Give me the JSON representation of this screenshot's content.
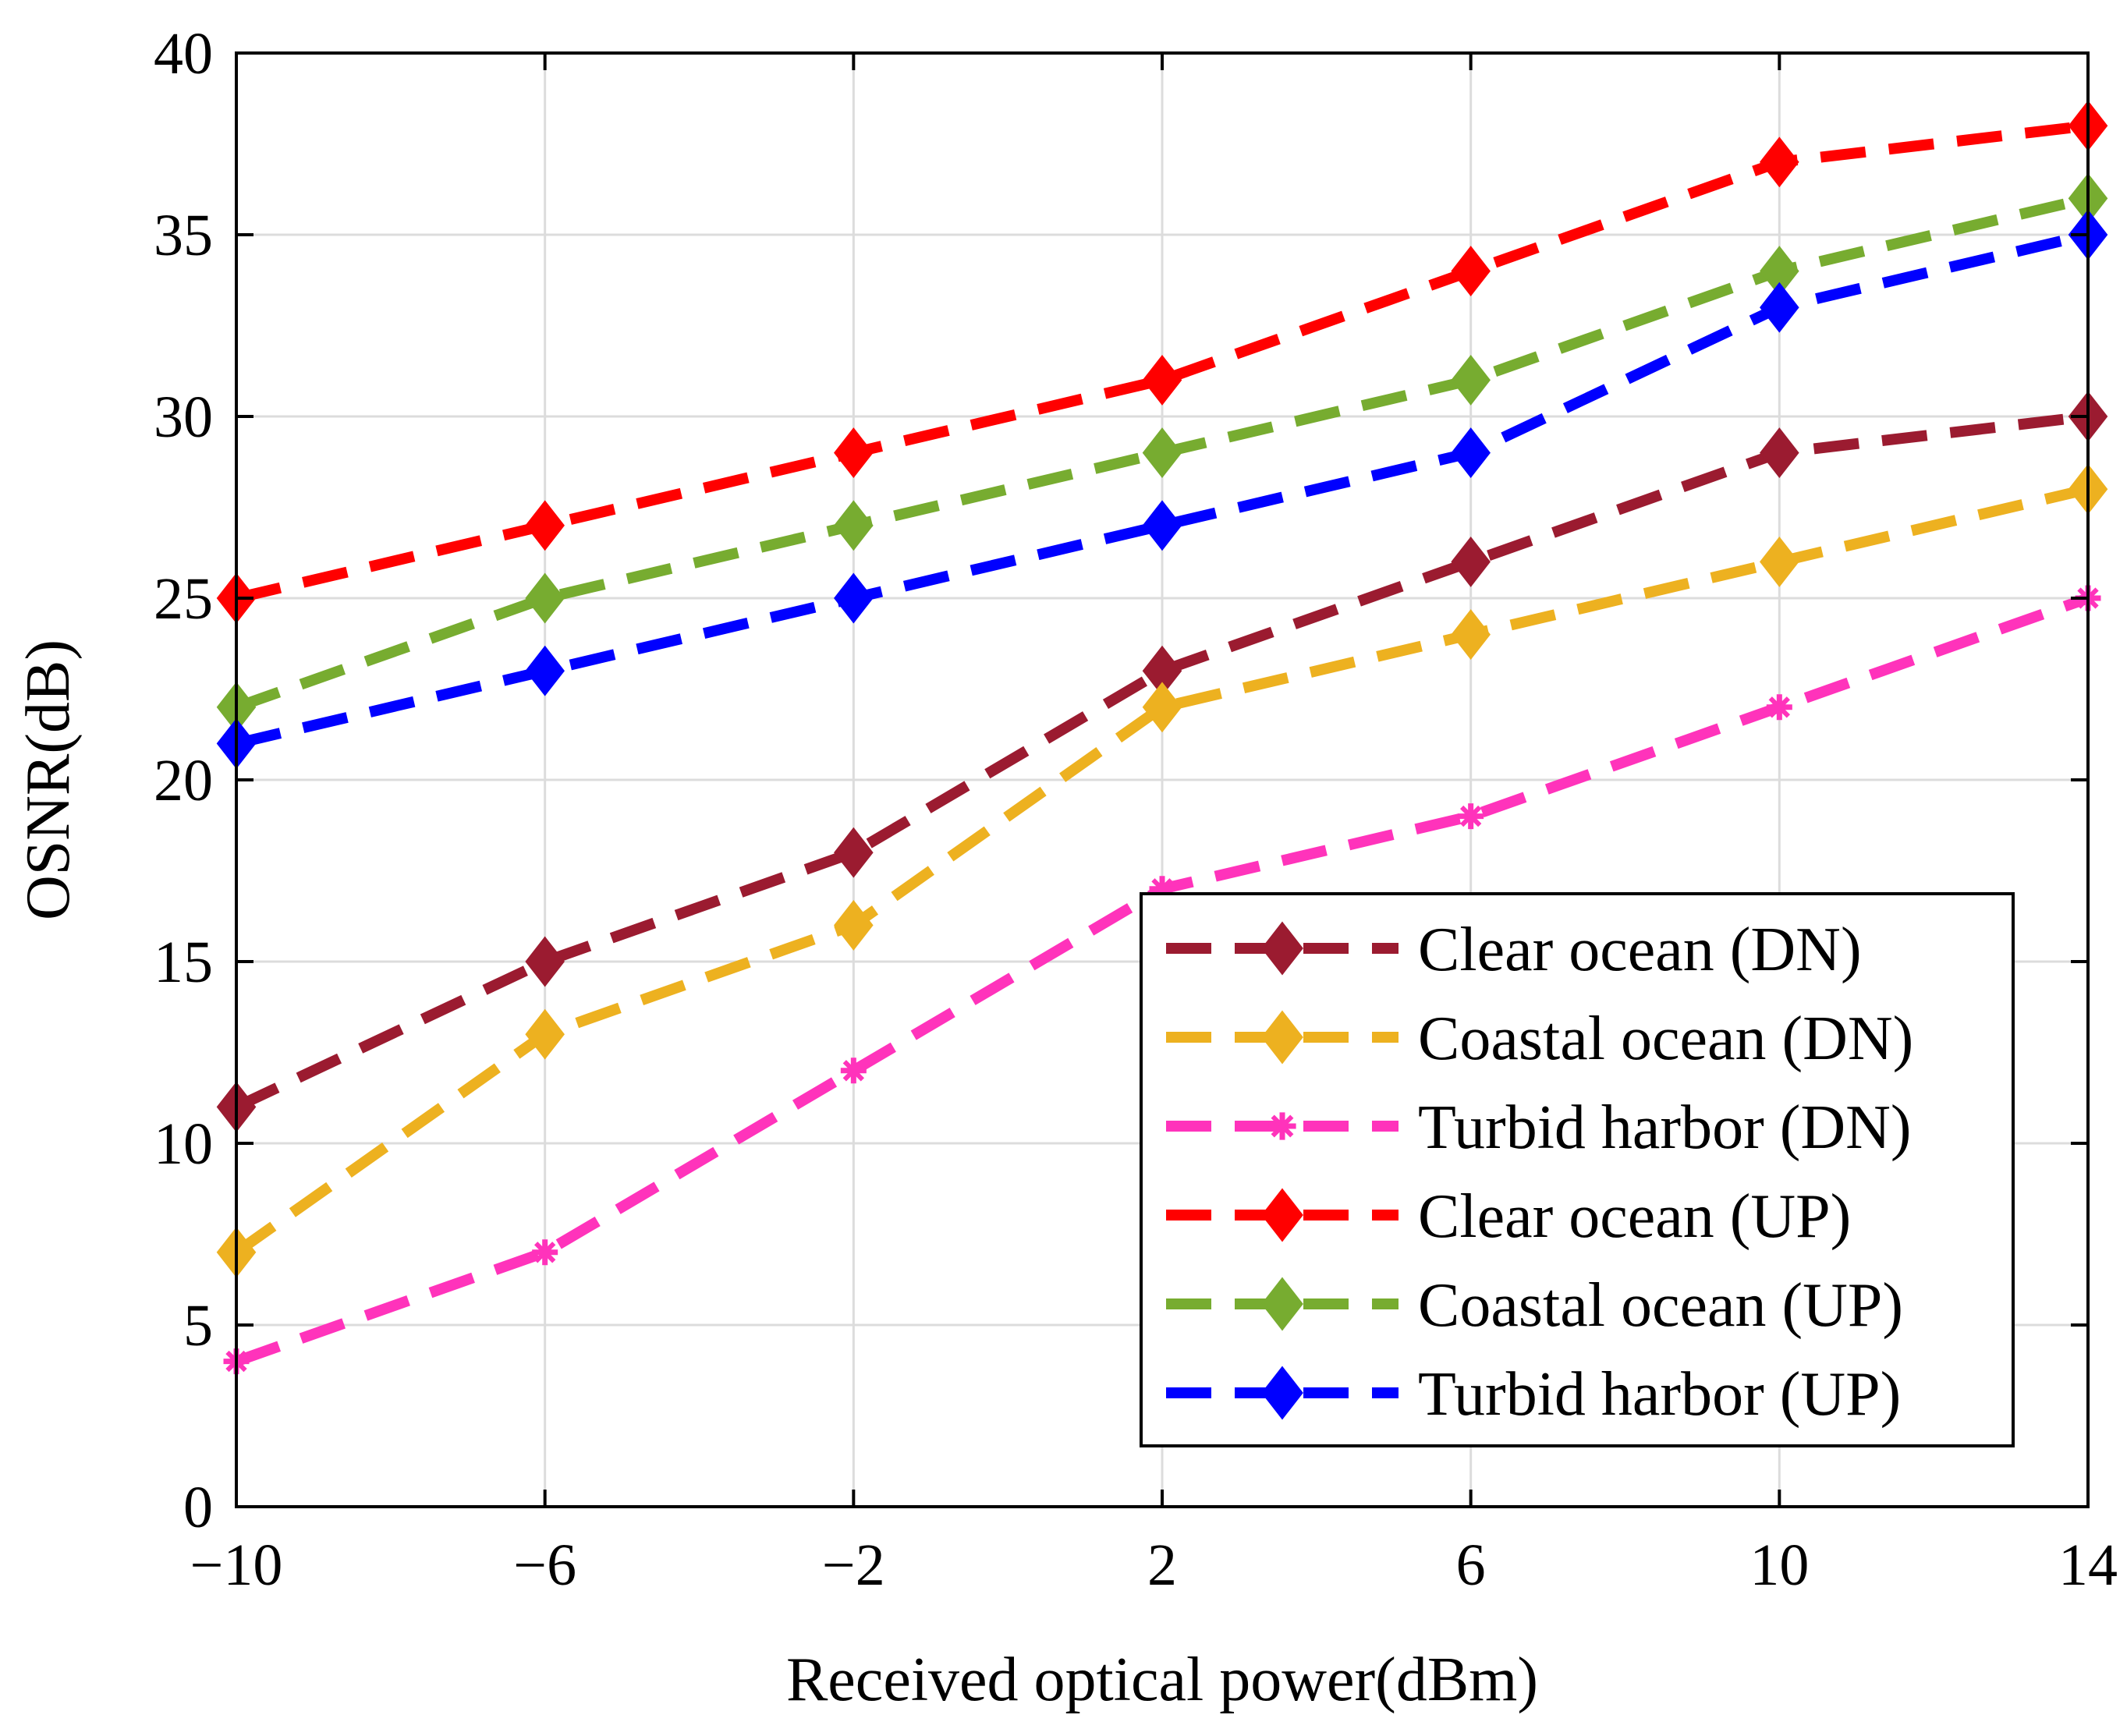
{
  "chart_data": {
    "type": "line",
    "title": "",
    "xlabel": "Received optical power(dBm)",
    "ylabel": "OSNR(dB)",
    "xlim": [
      -10,
      14
    ],
    "ylim": [
      0,
      40
    ],
    "grid": true,
    "legend_position": "bottom-right",
    "x": [
      -10,
      -6,
      -2,
      2,
      6,
      10,
      14
    ],
    "x_tick_labels": [
      "−10",
      "−6",
      "−2",
      "2",
      "6",
      "10",
      "14"
    ],
    "y_ticks": [
      0,
      5,
      10,
      15,
      20,
      25,
      30,
      35,
      40
    ],
    "y_tick_labels": [
      "0",
      "5",
      "10",
      "15",
      "20",
      "25",
      "30",
      "35",
      "40"
    ],
    "series": [
      {
        "name": "Clear ocean (DN)",
        "color": "#9b1b30",
        "marker": "diamond",
        "values": [
          11,
          15,
          18,
          23,
          26,
          29,
          30
        ]
      },
      {
        "name": "Coastal ocean (DN)",
        "color": "#edb120",
        "marker": "diamond",
        "values": [
          7,
          13,
          16,
          22,
          24,
          26,
          28
        ]
      },
      {
        "name": "Turbid harbor (DN)",
        "color": "#ff33bb",
        "marker": "star",
        "values": [
          4,
          7,
          12,
          17,
          19,
          22,
          25
        ]
      },
      {
        "name": "Clear ocean (UP)",
        "color": "#ff0000",
        "marker": "diamond",
        "values": [
          25,
          27,
          29,
          31,
          34,
          37,
          38
        ]
      },
      {
        "name": "Coastal ocean (UP)",
        "color": "#77ac30",
        "marker": "diamond",
        "values": [
          22,
          25,
          27,
          29,
          31,
          34,
          36
        ]
      },
      {
        "name": "Turbid harbor (UP)",
        "color": "#0000ff",
        "marker": "diamond",
        "values": [
          21,
          23,
          25,
          27,
          29,
          33,
          35
        ]
      }
    ]
  }
}
